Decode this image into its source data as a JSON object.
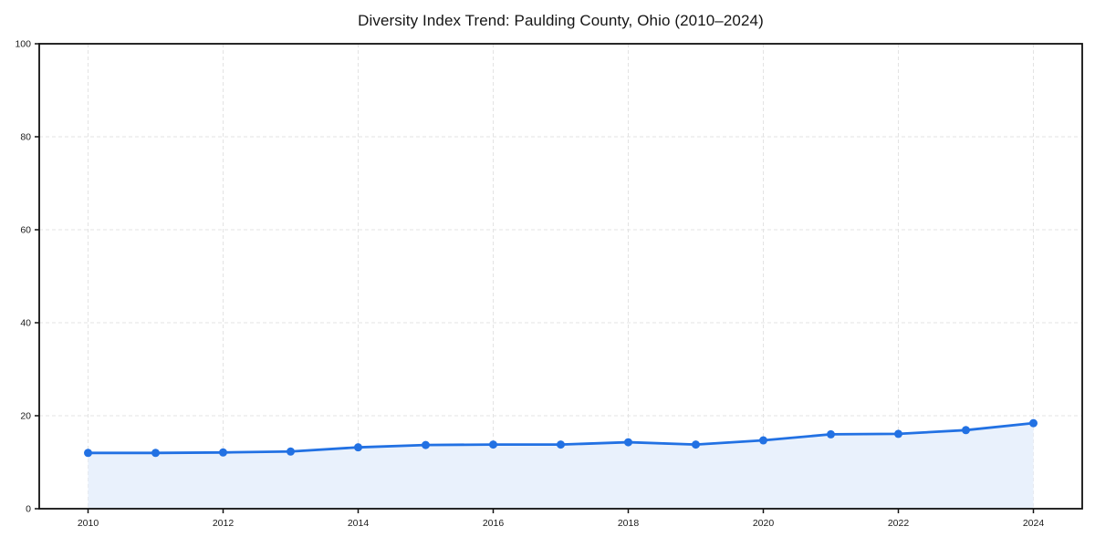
{
  "page": {
    "background": "#ffffff"
  },
  "chart_data": {
    "type": "line",
    "title": "Diversity Index Trend: Paulding County, Ohio (2010–2024)",
    "x": [
      2010,
      2011,
      2012,
      2013,
      2014,
      2015,
      2016,
      2017,
      2018,
      2019,
      2020,
      2021,
      2022,
      2023,
      2024
    ],
    "series": [
      {
        "name": "Diversity Index",
        "values": [
          12.0,
          12.0,
          12.1,
          12.3,
          13.2,
          13.7,
          13.8,
          13.8,
          14.3,
          13.8,
          14.7,
          16.0,
          16.1,
          16.9,
          18.4
        ]
      }
    ],
    "xlabel": "",
    "ylabel": "",
    "ylim": [
      0,
      100
    ],
    "y_ticks": [
      0,
      20,
      40,
      60,
      80,
      100
    ],
    "x_ticks": [
      2010,
      2012,
      2014,
      2016,
      2018,
      2020,
      2022,
      2024
    ],
    "grid": "dashed",
    "grid_color": "#e3e3e3",
    "legend": "none",
    "marker": "circle",
    "area_fill": true,
    "line_color": "#2271e3",
    "fill_color": "#e9f1fc",
    "axis_color": "#111111"
  }
}
